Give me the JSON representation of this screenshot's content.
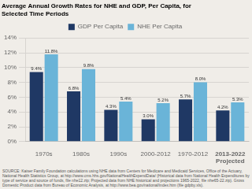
{
  "chart_data": {
    "type": "bar",
    "title": "Average Annual Growth Rates for NHE and GDP, Per Capita, for\nSelected Time Periods",
    "categories": [
      "1970s",
      "1980s",
      "1990s",
      "2000-2012",
      "1970-2012",
      "2013-2022\nProjected"
    ],
    "series": [
      {
        "name": "GDP Per Capita",
        "color": "#1f3864",
        "values": [
          9.4,
          6.8,
          4.3,
          3.0,
          5.7,
          4.2
        ],
        "value_labels": [
          "9.4%",
          "6.8%",
          "4.3%",
          "3.0%",
          "5.7%",
          "4.2%"
        ]
      },
      {
        "name": "NHE Per Capita",
        "color": "#6ab4d8",
        "values": [
          11.8,
          9.8,
          5.4,
          5.2,
          8.0,
          5.3
        ],
        "value_labels": [
          "11.8%",
          "9.8%",
          "5.4%",
          "5.2%",
          "8.0%",
          "5.3%"
        ]
      }
    ],
    "ylim": [
      0,
      14
    ],
    "yticks": [
      {
        "value": 0,
        "label": "0%"
      },
      {
        "value": 2,
        "label": "2%"
      },
      {
        "value": 4,
        "label": "4%"
      },
      {
        "value": 6,
        "label": "6%"
      },
      {
        "value": 8,
        "label": "8%"
      },
      {
        "value": 10,
        "label": "10%"
      },
      {
        "value": 12,
        "label": "12%"
      },
      {
        "value": 14,
        "label": "14%"
      }
    ],
    "grid": true,
    "legend": "top",
    "data_labels": true,
    "annotations": [
      "SOURCE: Kaiser Family Foundation calculations using NHE data from Centers for Medicare and Medicaid Services, Office of the Actuary,\nNational Health Statistics Group, at http://www.cms.hhs.gov/NationalHealthExpendData/ (Historical data from National Health Expenditures by\ntype of service and source of funds, file nhe12.zip; Projected data from NHE historical and projections 1965-2022, file nhe65-22.zip). Gross\nDomestic Product data from Bureau of Economic Analysis, at http://www.bea.gov/national/index.htm (file gdpby.xls)."
    ]
  }
}
